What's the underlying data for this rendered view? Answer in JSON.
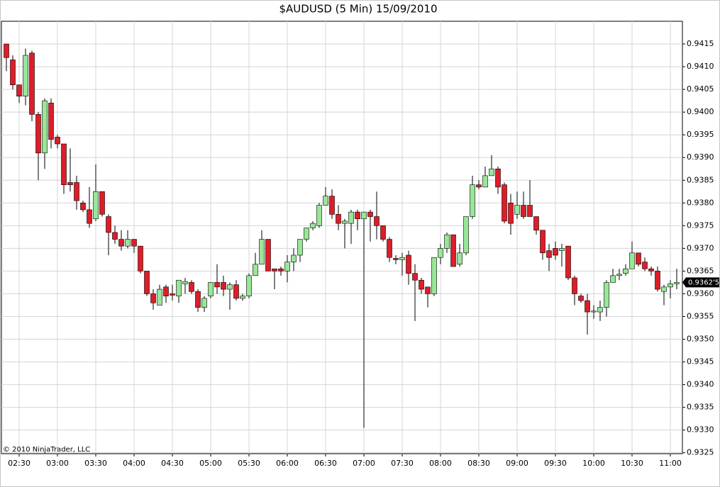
{
  "chart_data": {
    "type": "candlestick",
    "title": "$AUDUSD (5 Min)  15/09/2010",
    "copyright": "© 2010 NinjaTrader, LLC",
    "last_price_label": "0.9362'5",
    "up_color": "#98e698",
    "down_color": "#dc1e28",
    "outline_color": "#000000",
    "grid": true,
    "ylim": [
      0.93248,
      0.942
    ],
    "yticks": [
      0.9325,
      {
        "value": 0.933,
        "label": "0.9330"
      },
      0.9335,
      {
        "value": 0.934,
        "label": "0.9340"
      },
      0.9345,
      {
        "value": 0.935,
        "label": "0.9350"
      },
      0.9355,
      {
        "value": 0.936,
        "label": "0.9360"
      },
      0.9365,
      {
        "value": 0.937,
        "label": "0.9370"
      },
      0.9375,
      {
        "value": 0.938,
        "label": "0.9380"
      },
      0.9385,
      {
        "value": 0.939,
        "label": "0.9390"
      },
      0.9395,
      {
        "value": 0.94,
        "label": "0.9400"
      },
      0.9405,
      {
        "value": 0.941,
        "label": "0.9410"
      },
      0.9415
    ],
    "categories": [
      null,
      null,
      "02:30",
      null,
      null,
      null,
      null,
      null,
      "03:00",
      null,
      null,
      null,
      null,
      null,
      "03:30",
      null,
      null,
      null,
      null,
      null,
      "04:00",
      null,
      null,
      null,
      null,
      null,
      "04:30",
      null,
      null,
      null,
      null,
      null,
      "05:00",
      null,
      null,
      null,
      null,
      null,
      "05:30",
      null,
      null,
      null,
      null,
      null,
      "06:00",
      null,
      null,
      null,
      null,
      null,
      "06:30",
      null,
      null,
      null,
      null,
      null,
      "07:00",
      null,
      null,
      null,
      null,
      null,
      "07:30",
      null,
      null,
      null,
      null,
      null,
      "08:00",
      null,
      null,
      null,
      null,
      null,
      "08:30",
      null,
      null,
      null,
      null,
      null,
      "09:00",
      null,
      null,
      null,
      null,
      null,
      "09:30",
      null,
      null,
      null,
      null,
      null,
      "10:00",
      null,
      null,
      null,
      null,
      null,
      "10:30",
      null,
      null,
      null,
      null,
      null,
      "11:00",
      null
    ],
    "open": [
      0.9415,
      0.94115,
      0.9406,
      0.94035,
      0.9413,
      0.93995,
      0.9391,
      0.9402,
      0.93945,
      0.9393,
      0.93845,
      0.93845,
      0.938,
      0.93785,
      0.93765,
      0.93825,
      0.9377,
      0.93735,
      0.9372,
      0.93705,
      0.9372,
      0.93705,
      0.9365,
      0.936,
      0.93575,
      0.93615,
      0.936,
      0.93595,
      0.93622,
      0.93625,
      0.93605,
      0.9357,
      0.93595,
      0.93625,
      0.93625,
      0.9361,
      0.9362,
      0.9359,
      0.93595,
      0.9364,
      0.93665,
      0.9372,
      0.93655,
      0.93655,
      0.9365,
      0.9367,
      0.93685,
      0.9372,
      0.93745,
      0.9375,
      0.93795,
      0.93815,
      0.93775,
      0.93755,
      0.93755,
      0.9378,
      0.93765,
      0.9378,
      0.9377,
      0.9375,
      0.9372,
      0.93678,
      0.93675,
      0.93685,
      0.93645,
      0.9363,
      0.93615,
      0.936,
      0.9368,
      0.937,
      0.9373,
      0.93665,
      0.9369,
      0.9377,
      0.9384,
      0.93835,
      0.9386,
      0.93875,
      0.9384,
      0.938,
      0.93775,
      0.93795,
      0.93795,
      0.9377,
      0.9374,
      0.93695,
      0.937,
      0.93695,
      0.93705,
      0.93635,
      0.93595,
      0.93585,
      0.9356,
      0.9356,
      0.9357,
      0.93625,
      0.9364,
      0.93645,
      0.93655,
      0.9369,
      0.9367,
      0.93655,
      0.9365,
      0.93605,
      0.93615,
      0.93622
    ],
    "high": [
      0.9415,
      0.94125,
      0.9406,
      0.9414,
      0.94135,
      0.94,
      0.9403,
      0.9403,
      0.9395,
      0.9393,
      0.9392,
      0.9386,
      0.93805,
      0.93835,
      0.93885,
      0.93825,
      0.93775,
      0.9375,
      0.9374,
      0.9374,
      0.9372,
      0.93705,
      0.9365,
      0.9361,
      0.9362,
      0.9362,
      0.9362,
      0.9363,
      0.93635,
      0.9363,
      0.9361,
      0.93595,
      0.93625,
      0.93665,
      0.9364,
      0.93625,
      0.9363,
      0.936,
      0.93645,
      0.9369,
      0.9374,
      0.9372,
      0.93655,
      0.9366,
      0.93685,
      0.937,
      0.9372,
      0.93745,
      0.9376,
      0.938,
      0.93835,
      0.9383,
      0.93795,
      0.93765,
      0.93785,
      0.93785,
      0.9378,
      0.93785,
      0.93825,
      0.9375,
      0.93725,
      0.93685,
      0.9369,
      0.93695,
      0.93665,
      0.93635,
      0.93615,
      0.9368,
      0.9371,
      0.93735,
      0.9373,
      0.9371,
      0.9377,
      0.9386,
      0.9385,
      0.9388,
      0.93905,
      0.9388,
      0.93845,
      0.9382,
      0.93825,
      0.93825,
      0.9385,
      0.9377,
      0.9374,
      0.9371,
      0.93715,
      0.9371,
      0.93705,
      0.9364,
      0.936,
      0.936,
      0.93575,
      0.93585,
      0.9363,
      0.93655,
      0.93655,
      0.93665,
      0.93715,
      0.9369,
      0.9368,
      0.9366,
      0.9366,
      0.9362,
      0.9363,
      0.93655
    ],
    "low": [
      0.9409,
      0.9405,
      0.9402,
      0.94015,
      0.9398,
      0.9385,
      0.93875,
      0.9392,
      0.9392,
      0.9382,
      0.93825,
      0.93785,
      0.9378,
      0.93745,
      0.9376,
      0.9377,
      0.93685,
      0.9371,
      0.93695,
      0.937,
      0.9369,
      0.93645,
      0.93595,
      0.93565,
      0.93575,
      0.9358,
      0.93585,
      0.9358,
      0.936,
      0.936,
      0.9356,
      0.9356,
      0.9359,
      0.936,
      0.93595,
      0.93565,
      0.93585,
      0.93585,
      0.9359,
      0.9364,
      0.93665,
      0.9365,
      0.9361,
      0.9364,
      0.93625,
      0.9365,
      0.9367,
      0.93715,
      0.9374,
      0.93745,
      0.93795,
      0.93765,
      0.9374,
      0.937,
      0.9371,
      0.9374,
      0.93305,
      0.93715,
      0.9372,
      0.93715,
      0.9367,
      0.93665,
      0.9364,
      0.9362,
      0.9354,
      0.936,
      0.9357,
      0.93595,
      0.93665,
      0.9369,
      0.9366,
      0.9366,
      0.93685,
      0.93765,
      0.9383,
      0.93835,
      0.9386,
      0.9382,
      0.93755,
      0.9373,
      0.93765,
      0.93765,
      0.9377,
      0.9373,
      0.93675,
      0.9365,
      0.93675,
      0.9366,
      0.9363,
      0.93575,
      0.9358,
      0.9351,
      0.93545,
      0.9354,
      0.9355,
      0.93625,
      0.9363,
      0.9364,
      0.93655,
      0.9366,
      0.9365,
      0.9364,
      0.93605,
      0.93575,
      0.9359,
      0.9361
    ],
    "close": [
      0.9412,
      0.9406,
      0.94035,
      0.94125,
      0.93995,
      0.9391,
      0.94025,
      0.9394,
      0.9393,
      0.9384,
      0.9384,
      0.93805,
      0.93785,
      0.93755,
      0.93825,
      0.93775,
      0.93735,
      0.9372,
      0.93705,
      0.9372,
      0.93705,
      0.9365,
      0.936,
      0.9358,
      0.9361,
      0.93595,
      0.93597,
      0.9363,
      0.93627,
      0.93605,
      0.9357,
      0.9359,
      0.93625,
      0.93615,
      0.9361,
      0.9362,
      0.9359,
      0.93595,
      0.9364,
      0.93665,
      0.9372,
      0.9365,
      0.9365,
      0.9365,
      0.9367,
      0.93685,
      0.9372,
      0.93745,
      0.93755,
      0.93795,
      0.93815,
      0.93775,
      0.93755,
      0.9376,
      0.9378,
      0.93765,
      0.9378,
      0.9377,
      0.9375,
      0.9372,
      0.9368,
      0.93675,
      0.9368,
      0.93645,
      0.9363,
      0.9361,
      0.936,
      0.9368,
      0.937,
      0.9373,
      0.9366,
      0.9369,
      0.9377,
      0.9384,
      0.93835,
      0.9386,
      0.93875,
      0.93835,
      0.9376,
      0.93755,
      0.93795,
      0.9377,
      0.9377,
      0.9374,
      0.9369,
      0.9368,
      0.93685,
      0.937,
      0.93635,
      0.936,
      0.93585,
      0.9356,
      0.93562,
      0.9357,
      0.93625,
      0.9364,
      0.93643,
      0.93655,
      0.9369,
      0.93665,
      0.93655,
      0.9365,
      0.9361,
      0.93615,
      0.93622,
      0.93625
    ]
  }
}
